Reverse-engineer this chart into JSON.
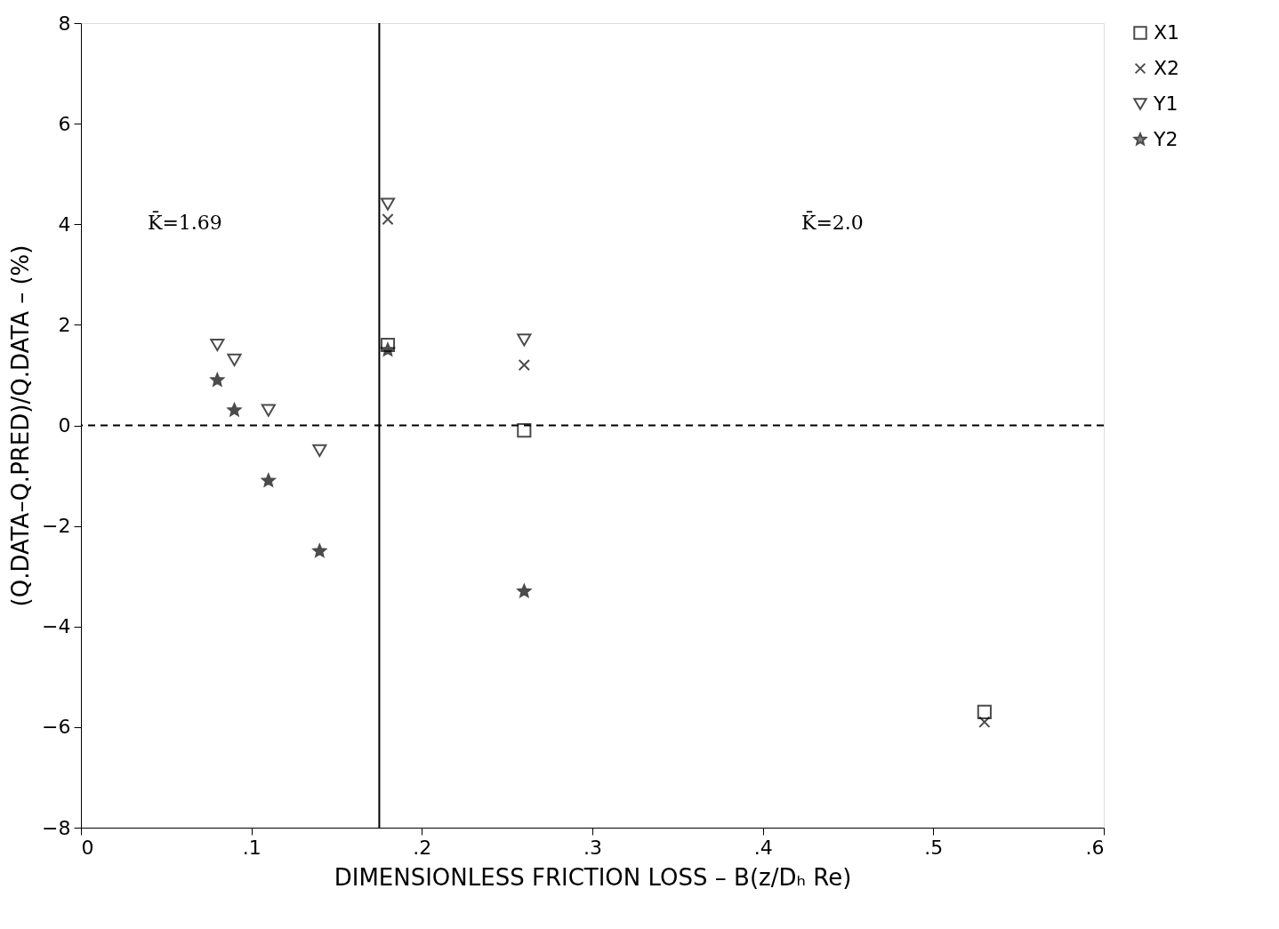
{
  "chart_data": {
    "type": "scatter",
    "xlabel": "DIMENSIONLESS FRICTION LOSS – B(z/Dₕ Re)",
    "ylabel": "(Q.DATA–Q.PRED)/Q.DATA – (%)",
    "xlim": [
      0,
      0.6
    ],
    "ylim": [
      -8,
      8
    ],
    "xticks": [
      0,
      {
        "value": 0.1,
        "label": ".1"
      },
      {
        "value": 0.2,
        "label": ".2"
      },
      {
        "value": 0.3,
        "label": ".3"
      },
      {
        "value": 0.4,
        "label": ".4"
      },
      {
        "value": 0.5,
        "label": ".5"
      },
      {
        "value": 0.6,
        "label": ".6"
      }
    ],
    "yticks": [
      -8,
      -6,
      -4,
      -2,
      0,
      2,
      4,
      6,
      8
    ],
    "grid": false,
    "legend": "right",
    "series": [
      {
        "name": "X1",
        "color": "#000000",
        "marker": "square",
        "x": [
          0.18,
          0.26,
          0.53
        ],
        "values": [
          1.6,
          -0.1,
          -5.7
        ]
      },
      {
        "name": "X2",
        "color": "#000000",
        "marker": "cross",
        "x": [
          0.18,
          0.26,
          0.53
        ],
        "values": [
          4.1,
          1.2,
          -5.9
        ]
      },
      {
        "name": "Y1",
        "color": "#000000",
        "marker": "triangle",
        "x": [
          0.08,
          0.09,
          0.11,
          0.14,
          0.18,
          0.26
        ],
        "values": [
          1.6,
          1.3,
          0.3,
          -0.5,
          4.4,
          1.7
        ]
      },
      {
        "name": "Y2",
        "color": "#000000",
        "marker": "star",
        "x": [
          0.08,
          0.09,
          0.11,
          0.14,
          0.18,
          0.26
        ],
        "values": [
          0.9,
          0.3,
          -1.1,
          -2.5,
          1.5,
          -3.3
        ]
      }
    ],
    "ref_lines": [
      {
        "axis": "x",
        "value": 0.175,
        "line_style": "solid",
        "color": "#000000"
      },
      {
        "axis": "y",
        "value": 0,
        "line_style": "dashed",
        "color": "#000000"
      }
    ],
    "annotations": [
      "K̄=1.69",
      "K̄=2.0"
    ]
  }
}
